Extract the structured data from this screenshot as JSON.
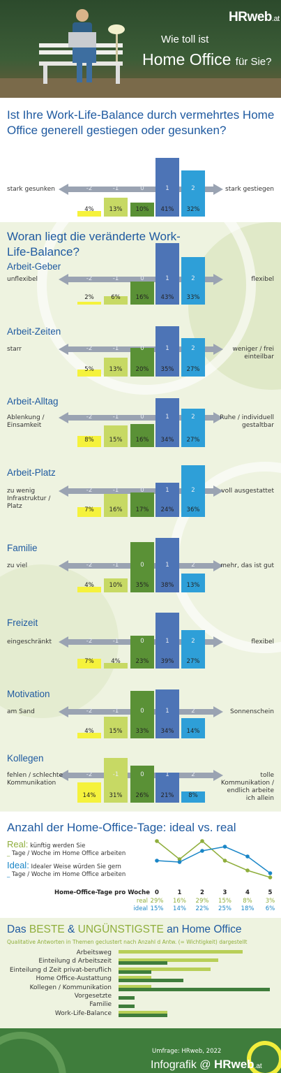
{
  "header": {
    "brand": "HRweb",
    "brand_suffix": ".at",
    "question_line1": "Wie toll ist",
    "question_line2": "Home Office",
    "question_line2_suffix": "für Sie?"
  },
  "q1": {
    "title": "Ist Ihre Work-Life-Balance durch vermehrtes Home Office generell gestiegen oder gesunken?",
    "left_label": "stark gesunken",
    "right_label": "stark gestiegen"
  },
  "q2": {
    "title": "Woran liegt die veränderte Work-Life-Balance?"
  },
  "scale_ticks": [
    "-2",
    "-1",
    "0",
    "1",
    "2"
  ],
  "colors": {
    "m2": "#f5f23c",
    "m1": "#c7d964",
    "z": "#5a9136",
    "p1": "#4d74b6",
    "p2": "#2e9fd8"
  },
  "chart_data": [
    {
      "type": "bar",
      "title": "",
      "categories": [
        "-2",
        "-1",
        "0",
        "1",
        "2"
      ],
      "values": [
        4,
        13,
        10,
        41,
        32
      ],
      "unit": "%",
      "left": "stark gesunken",
      "right": "stark gestiegen"
    },
    {
      "type": "bar",
      "title": "Arbeit-Geber",
      "categories": [
        "-2",
        "-1",
        "0",
        "1",
        "2"
      ],
      "values": [
        2,
        6,
        16,
        43,
        33
      ],
      "unit": "%",
      "left": "unflexibel",
      "right": "flexibel"
    },
    {
      "type": "bar",
      "title": "Arbeit-Zeiten",
      "categories": [
        "-2",
        "-1",
        "0",
        "1",
        "2"
      ],
      "values": [
        5,
        13,
        20,
        35,
        27
      ],
      "unit": "%",
      "left": "starr",
      "right": "weniger / frei einteilbar"
    },
    {
      "type": "bar",
      "title": "Arbeit-Alltag",
      "categories": [
        "-2",
        "-1",
        "0",
        "1",
        "2"
      ],
      "values": [
        8,
        15,
        16,
        34,
        27
      ],
      "unit": "%",
      "left": "Ablenkung / Einsamkeit",
      "right": "Ruhe / individuell gestaltbar"
    },
    {
      "type": "bar",
      "title": "Arbeit-Platz",
      "categories": [
        "-2",
        "-1",
        "0",
        "1",
        "2"
      ],
      "values": [
        7,
        16,
        17,
        24,
        36
      ],
      "unit": "%",
      "left": "zu wenig Infrastruktur / Platz",
      "right": "voll ausgestattet"
    },
    {
      "type": "bar",
      "title": "Familie",
      "categories": [
        "-2",
        "-1",
        "0",
        "1",
        "2"
      ],
      "values": [
        4,
        10,
        35,
        38,
        13
      ],
      "unit": "%",
      "left": "zu viel",
      "right": "mehr, das ist gut"
    },
    {
      "type": "bar",
      "title": "Freizeit",
      "categories": [
        "-2",
        "-1",
        "0",
        "1",
        "2"
      ],
      "values": [
        7,
        4,
        23,
        39,
        27
      ],
      "unit": "%",
      "left": "eingeschränkt",
      "right": "flexibel"
    },
    {
      "type": "bar",
      "title": "Motivation",
      "categories": [
        "-2",
        "-1",
        "0",
        "1",
        "2"
      ],
      "values": [
        4,
        15,
        33,
        34,
        14
      ],
      "unit": "%",
      "left": "am Sand",
      "right": "Sonnenschein"
    },
    {
      "type": "bar",
      "title": "Kollegen",
      "categories": [
        "-2",
        "-1",
        "0",
        "1",
        "2"
      ],
      "values": [
        14,
        31,
        26,
        21,
        8
      ],
      "unit": "%",
      "left": "fehlen / schlechte Kommunikation",
      "right": "tolle Kommunikation / endlich arbeite ich allein"
    },
    {
      "type": "line",
      "title": "Anzahl der Home-Office-Tage: ideal vs. real",
      "xlabel": "Home-Office-Tage pro Woche",
      "x": [
        0,
        1,
        2,
        3,
        4,
        5
      ],
      "series": [
        {
          "name": "real",
          "values": [
            29,
            16,
            29,
            15,
            8,
            3
          ],
          "color": "#8fae3c"
        },
        {
          "name": "ideal",
          "values": [
            15,
            14,
            22,
            25,
            18,
            6
          ],
          "color": "#1a86c7"
        }
      ],
      "legend": [
        {
          "name": "Real:",
          "line1": "künftig werden Sie",
          "line2": "Tage / Woche im Home Office arbeiten"
        },
        {
          "name": "Ideal:",
          "line1": "Idealer Weise würden Sie gern",
          "line2": "Tage / Woche im Home Office arbeiten"
        }
      ]
    },
    {
      "type": "bar",
      "title": "Das BESTE & UNGÜNSTIGSTE an Home Office",
      "subtitle": "Qualitative Antworten in Themen geclustert nach Anzahl d Antw. (= Wichtigkeit) dargestellt",
      "categories": [
        "Arbeitsweg",
        "Einteilung d Arbeitszeit",
        "Einteilung d Zeit privat-beruflich",
        "Home Office-Austattung",
        "Kollegen / Kommunikation",
        "Vorgesetzte",
        "Familie",
        "Work-Life-Balance"
      ],
      "series": [
        {
          "name": "beste",
          "values": [
            115,
            92,
            85,
            30,
            30,
            0,
            0,
            45
          ],
          "color": "#b8cf58"
        },
        {
          "name": "ungünstigste",
          "values": [
            0,
            45,
            30,
            60,
            140,
            15,
            15,
            45
          ],
          "color": "#3f7d3c"
        }
      ]
    }
  ],
  "section3": {
    "title_html_parts": [
      "Das ",
      "BESTE",
      " & ",
      "UNGÜNSTIGSTE",
      " an Home Office"
    ]
  },
  "footer": {
    "source": "Umfrage: HRweb, 2022",
    "label": "Infografik @",
    "brand": "HRweb",
    "brand_suffix": ".at"
  }
}
